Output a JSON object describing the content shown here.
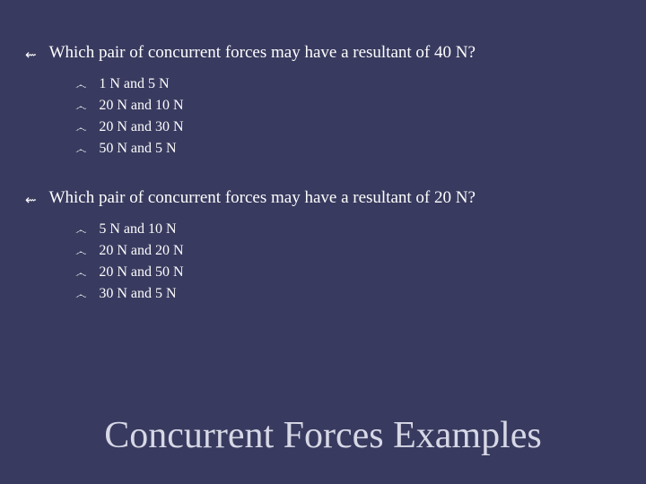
{
  "bullet_main": "⇜",
  "bullet_sub": "෴",
  "questions": [
    {
      "text": "Which pair of concurrent forces may have a resultant of 40 N?",
      "options": [
        "1 N and 5 N",
        "20 N and 10 N",
        "20 N and 30 N",
        "50 N and 5 N"
      ]
    },
    {
      "text": "Which pair of concurrent forces may have a resultant of 20 N?",
      "options": [
        "5 N and 10 N",
        "20 N and 20 N",
        "20 N and 50 N",
        "30 N and 5 N"
      ]
    }
  ],
  "title": "Concurrent Forces Examples",
  "colors": {
    "background": "#383a5f",
    "text": "#fefefe",
    "title": "#d7d8e6"
  },
  "fontsize": {
    "question": 19,
    "option": 16,
    "title": 42
  }
}
